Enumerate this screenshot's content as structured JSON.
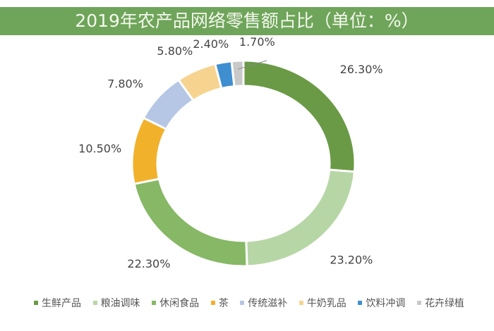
{
  "chart_data": {
    "type": "pie",
    "subtype": "donut",
    "title": "2019年农产品网络零售额占比（单位：%）",
    "categories": [
      "生鲜产品",
      "粮油调味",
      "休闲食品",
      "茶",
      "传统滋补",
      "牛奶乳品",
      "饮料冲调",
      "花卉绿植"
    ],
    "values": [
      26.3,
      23.2,
      22.3,
      10.5,
      7.8,
      5.8,
      2.4,
      1.7
    ],
    "labels": [
      "26.30%",
      "23.20%",
      "22.30%",
      "10.50%",
      "7.80%",
      "5.80%",
      "2.40%",
      "1.70%"
    ],
    "colors": [
      "#6a9a46",
      "#b7d6a6",
      "#86b866",
      "#f1b12b",
      "#b5c7e5",
      "#f6d490",
      "#3f8fd0",
      "#c9c9c9"
    ],
    "legend": "bottom",
    "start": "top, clockwise"
  }
}
